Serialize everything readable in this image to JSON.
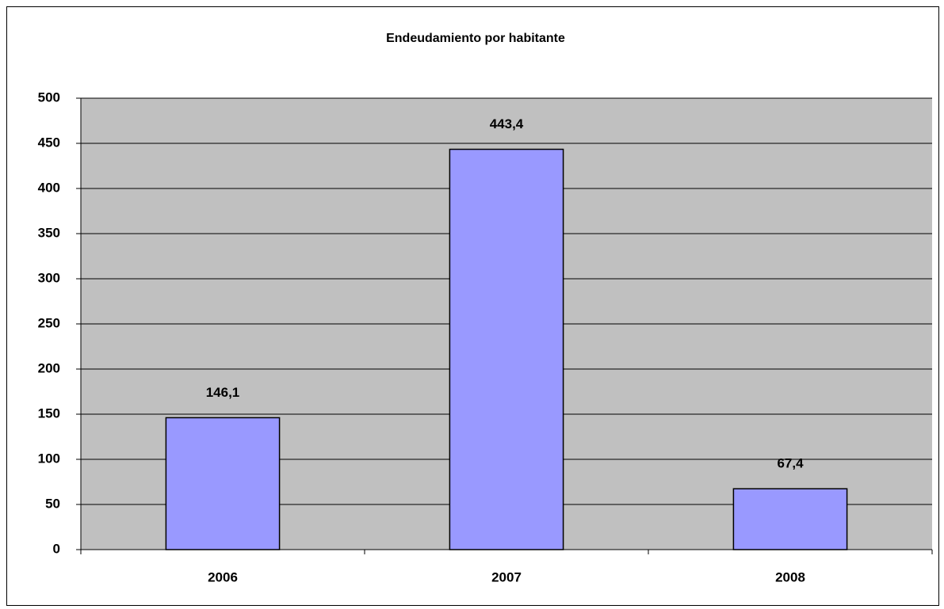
{
  "chart_data": {
    "type": "bar",
    "title": "Endeudamiento por habitante",
    "categories": [
      "2006",
      "2007",
      "2008"
    ],
    "values": [
      146.1,
      443.4,
      67.4
    ],
    "value_labels": [
      "146,1",
      "443,4",
      "67,4"
    ],
    "color": "#9999ff",
    "ylim": [
      0,
      500
    ],
    "yticks": [
      0,
      50,
      100,
      150,
      200,
      250,
      300,
      350,
      400,
      450,
      500
    ],
    "grid": true
  }
}
